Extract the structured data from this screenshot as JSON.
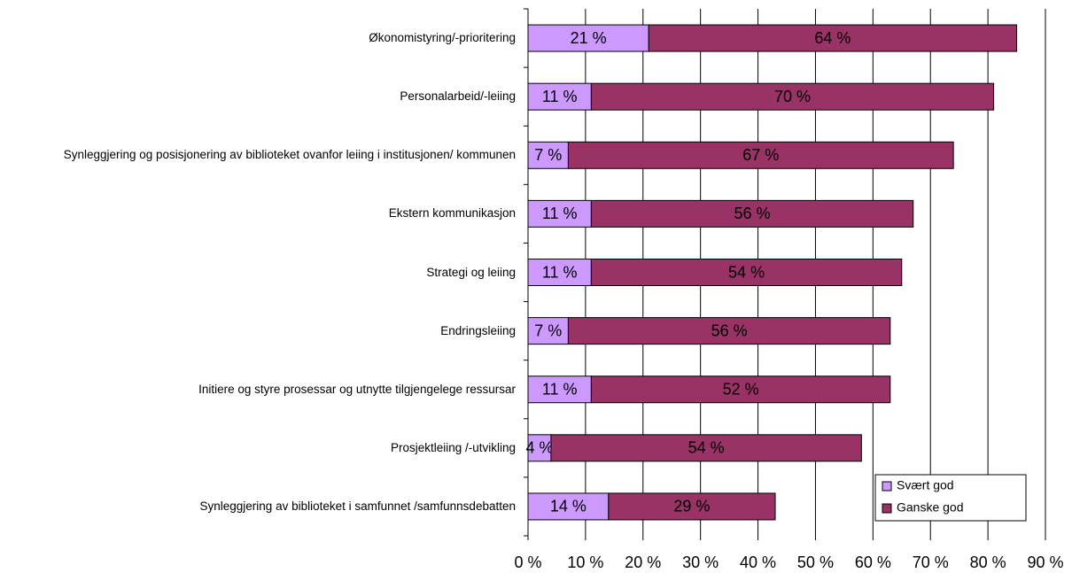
{
  "chart_data": {
    "type": "stacked_barh",
    "categories": [
      "Økonomistyring/-prioritering",
      "Personalarbeid/-leiing",
      "Synleggjering og posisjonering av biblioteket ovanfor leiing i institusjonen/ kommunen",
      "Ekstern kommunikasjon",
      "Strategi og leiing",
      "Endringsleiing",
      "Initiere og styre prosessar og utnytte tilgjengelege ressursar",
      "Prosjektleiing /-utvikling",
      "Synleggjering av biblioteket i samfunnet /samfunnsdebatten"
    ],
    "series": [
      {
        "name": "Svært god",
        "color": "#cc99ff",
        "values": [
          21,
          11,
          7,
          11,
          11,
          7,
          11,
          4,
          14
        ],
        "value_labels": [
          "21 %",
          "11 %",
          "7 %",
          "11 %",
          "11 %",
          "7 %",
          "11 %",
          "4 %",
          "14 %"
        ]
      },
      {
        "name": "Ganske god",
        "color": "#993366",
        "values": [
          64,
          70,
          67,
          56,
          54,
          56,
          52,
          54,
          29
        ],
        "value_labels": [
          "64 %",
          "70 %",
          "67 %",
          "56 %",
          "54 %",
          "56 %",
          "52 %",
          "54 %",
          "29 %"
        ]
      }
    ],
    "xlim": [
      0,
      90
    ],
    "xticks": [
      {
        "value": 0,
        "label": "0 %"
      },
      {
        "value": 10,
        "label": "10 %"
      },
      {
        "value": 20,
        "label": "20 %"
      },
      {
        "value": 30,
        "label": "30 %"
      },
      {
        "value": 40,
        "label": "40 %"
      },
      {
        "value": 50,
        "label": "50 %"
      },
      {
        "value": 60,
        "label": "60 %"
      },
      {
        "value": 70,
        "label": "70 %"
      },
      {
        "value": 80,
        "label": "80 %"
      },
      {
        "value": 90,
        "label": "90 %"
      }
    ],
    "grid": true,
    "legend": "lower right"
  }
}
